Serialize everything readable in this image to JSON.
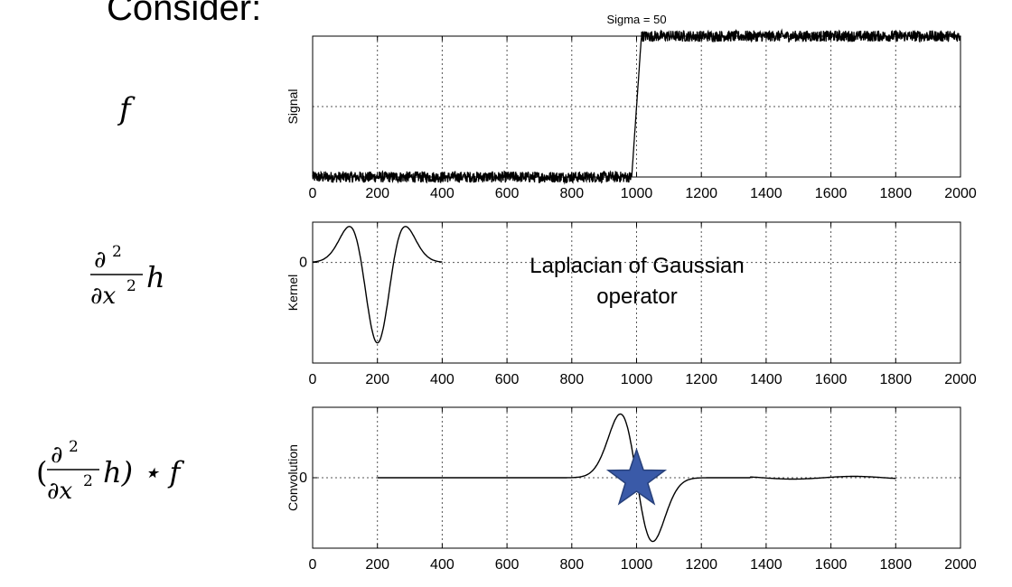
{
  "heading": {
    "word": "Consider:"
  },
  "row_labels": {
    "signal_symbol": "f",
    "kernel_partial": "∂",
    "kernel_exp": "2",
    "kernel_dx": "∂x",
    "kernel_h": "h",
    "conv_open": "(",
    "conv_close": "h) ⋆ f"
  },
  "chart_data": [
    {
      "type": "line",
      "title": "Sigma = 50",
      "ylabel": "Signal",
      "xlim": [
        0,
        2000
      ],
      "ylim": [
        0,
        1
      ],
      "xticks": [
        "0",
        "200",
        "400",
        "600",
        "800",
        "1000",
        "1200",
        "1400",
        "1600",
        "1800",
        "2000"
      ],
      "yticks": [],
      "grid": true,
      "series": [
        {
          "shape": "noisy step",
          "x": [
            0,
            985,
            1015,
            2000
          ],
          "y": [
            0,
            0,
            1,
            1
          ],
          "noise_amplitude": 0.04
        }
      ]
    },
    {
      "type": "line",
      "title": "",
      "ylabel": "Kernel",
      "xlim": [
        0,
        2000
      ],
      "ylim": [
        -1.25,
        0.5
      ],
      "xticks": [
        "0",
        "200",
        "400",
        "600",
        "800",
        "1000",
        "1200",
        "1400",
        "1600",
        "1800",
        "2000"
      ],
      "yticks": [
        "0"
      ],
      "grid": true,
      "annotation": "Laplacian of Gaussian operator",
      "annotation_lines": [
        "Laplacian of Gaussian",
        "operator"
      ],
      "series": [
        {
          "shape": "negative second derivative of Gaussian",
          "center": 200,
          "sigma": 50,
          "x_range": [
            0,
            400
          ],
          "min": -1,
          "max": 0.45
        }
      ]
    },
    {
      "type": "line",
      "title": "",
      "ylabel": "Convolution",
      "xlim": [
        0,
        2000
      ],
      "ylim": [
        -1.05,
        1.05
      ],
      "xticks": [
        "0",
        "200",
        "400",
        "600",
        "800",
        "1000",
        "1200",
        "1400",
        "1600",
        "1800",
        "2000"
      ],
      "yticks": [
        "0"
      ],
      "grid": true,
      "marker": {
        "type": "star",
        "x": 1000,
        "y": 0,
        "color": "#3a5aa8"
      },
      "series": [
        {
          "shape": "derivative of Gaussian (zero crossing at step)",
          "center": 1000,
          "sigma": 50,
          "x_range": [
            200,
            1800
          ],
          "peak": 0.95,
          "trough": -0.95
        }
      ]
    }
  ]
}
